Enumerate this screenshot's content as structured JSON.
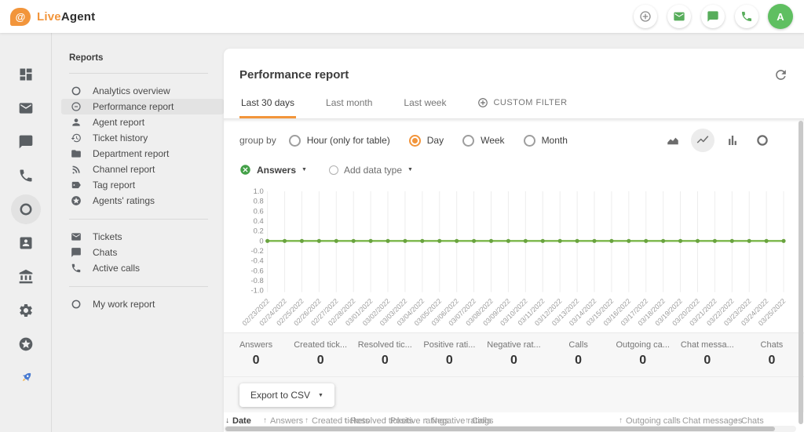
{
  "colors": {
    "accent_orange": "#F2953B",
    "brand_green": "#57AD5B",
    "avatar_green": "#5FBF61",
    "chart_line_green": "#7AB648",
    "chart_point_green": "#69A33F",
    "page_bg": "#EFEFEF"
  },
  "header": {
    "logo_at": "@",
    "logo_live": "Live",
    "logo_agent": "Agent",
    "actions": [
      {
        "name": "add-new",
        "icon": "plus-circle",
        "color": "#8A8A8A"
      },
      {
        "name": "tickets",
        "icon": "email",
        "color": "#57AD5B"
      },
      {
        "name": "chats",
        "icon": "chat",
        "color": "#57AD5B"
      },
      {
        "name": "calls",
        "icon": "phone",
        "color": "#57AD5B"
      }
    ],
    "avatar_letter": "A"
  },
  "icon_rail": [
    {
      "name": "dashboard",
      "icon": "dashboard",
      "active": false
    },
    {
      "name": "tickets",
      "icon": "email",
      "active": false
    },
    {
      "name": "chats",
      "icon": "chat",
      "active": false
    },
    {
      "name": "calls",
      "icon": "phone",
      "active": false
    },
    {
      "name": "reports",
      "icon": "donut",
      "active": true
    },
    {
      "name": "contacts",
      "icon": "contact-card",
      "active": false
    },
    {
      "name": "billing",
      "icon": "bank",
      "active": false
    },
    {
      "name": "settings",
      "icon": "gear",
      "active": false
    },
    {
      "name": "upgrades",
      "icon": "star-circle",
      "active": false
    },
    {
      "name": "getting-started",
      "icon": "rocket",
      "active": false
    }
  ],
  "sidebar": {
    "title": "Reports",
    "sections": [
      {
        "items": [
          {
            "label": "Analytics overview",
            "icon": "ring",
            "active": false
          },
          {
            "label": "Performance report",
            "icon": "gauge",
            "active": true
          },
          {
            "label": "Agent report",
            "icon": "person",
            "active": false
          },
          {
            "label": "Ticket history",
            "icon": "history",
            "active": false
          },
          {
            "label": "Department report",
            "icon": "folder",
            "active": false
          },
          {
            "label": "Channel report",
            "icon": "rss",
            "active": false
          },
          {
            "label": "Tag report",
            "icon": "tag",
            "active": false
          },
          {
            "label": "Agents' ratings",
            "icon": "star-circle",
            "active": false
          }
        ]
      },
      {
        "items": [
          {
            "label": "Tickets",
            "icon": "email",
            "active": false
          },
          {
            "label": "Chats",
            "icon": "chat",
            "active": false
          },
          {
            "label": "Active calls",
            "icon": "phone",
            "active": false
          }
        ]
      },
      {
        "items": [
          {
            "label": "My work report",
            "icon": "ring",
            "active": false
          }
        ]
      }
    ]
  },
  "main": {
    "title": "Performance report",
    "tabs": [
      {
        "label": "Last 30 days",
        "active": true,
        "icon": null
      },
      {
        "label": "Last month",
        "active": false,
        "icon": null
      },
      {
        "label": "Last week",
        "active": false,
        "icon": null
      },
      {
        "label": "CUSTOM FILTER",
        "active": false,
        "icon": "plus-circle"
      }
    ],
    "group_by": {
      "label": "group by",
      "options": [
        {
          "label": "Hour (only for table)",
          "selected": false
        },
        {
          "label": "Day",
          "selected": true
        },
        {
          "label": "Week",
          "selected": false
        },
        {
          "label": "Month",
          "selected": false
        }
      ]
    },
    "chart_types": [
      {
        "name": "area-chart",
        "active": false
      },
      {
        "name": "line-chart",
        "active": true
      },
      {
        "name": "bar-chart",
        "active": false
      },
      {
        "name": "donut-chart",
        "active": false
      }
    ],
    "series_picker": {
      "selected": "Answers",
      "add_label": "Add data type"
    },
    "stats": [
      {
        "label": "Answers",
        "value": "0"
      },
      {
        "label": "Created tick...",
        "value": "0"
      },
      {
        "label": "Resolved tic...",
        "value": "0"
      },
      {
        "label": "Positive rati...",
        "value": "0"
      },
      {
        "label": "Negative rat...",
        "value": "0"
      },
      {
        "label": "Calls",
        "value": "0"
      },
      {
        "label": "Outgoing ca...",
        "value": "0"
      },
      {
        "label": "Chat messa...",
        "value": "0"
      },
      {
        "label": "Chats",
        "value": "0"
      }
    ],
    "export_label": "Export to CSV",
    "table": {
      "columns": [
        {
          "label": "Date",
          "sort": "down",
          "active": true
        },
        {
          "label": "Answers",
          "sort": "up",
          "active": false
        },
        {
          "label": "Created tickets",
          "sort": "up",
          "active": false
        },
        {
          "label": "Resolved tickets",
          "sort": "up",
          "active": false
        },
        {
          "label": "Positive ratings",
          "sort": "up",
          "active": false
        },
        {
          "label": "Negative ratings",
          "sort": "up",
          "active": false
        },
        {
          "label": "Calls",
          "sort": "up",
          "active": false
        },
        {
          "label": "Outgoing calls",
          "sort": "up",
          "active": false
        },
        {
          "label": "Chat messages",
          "sort": "up",
          "active": false
        },
        {
          "label": "Chats",
          "sort": "up",
          "active": false
        }
      ]
    }
  },
  "chart_data": {
    "type": "line",
    "title": "",
    "xlabel": "",
    "ylabel": "",
    "x": [
      "02/23/2022",
      "02/24/2022",
      "02/25/2022",
      "02/26/2022",
      "02/27/2022",
      "02/28/2022",
      "03/01/2022",
      "03/02/2022",
      "03/03/2022",
      "03/04/2022",
      "03/05/2022",
      "03/06/2022",
      "03/07/2022",
      "03/08/2022",
      "03/09/2022",
      "03/10/2022",
      "03/11/2022",
      "03/12/2022",
      "03/13/2022",
      "03/14/2022",
      "03/15/2022",
      "03/16/2022",
      "03/17/2022",
      "03/18/2022",
      "03/19/2022",
      "03/20/2022",
      "03/21/2022",
      "03/22/2022",
      "03/23/2022",
      "03/24/2022",
      "03/25/2022"
    ],
    "series": [
      {
        "name": "Answers",
        "values": [
          0,
          0,
          0,
          0,
          0,
          0,
          0,
          0,
          0,
          0,
          0,
          0,
          0,
          0,
          0,
          0,
          0,
          0,
          0,
          0,
          0,
          0,
          0,
          0,
          0,
          0,
          0,
          0,
          0,
          0,
          0
        ]
      }
    ],
    "ylim": [
      -1.0,
      1.0
    ],
    "yticks": [
      1.0,
      0.8,
      0.6,
      0.4,
      0.2,
      0,
      -0.2,
      -0.4,
      -0.6,
      -0.8,
      -1.0
    ],
    "grid": "vertical",
    "legend_position": "top-left",
    "line_color": "#7AB648",
    "point_color": "#69A33F"
  }
}
